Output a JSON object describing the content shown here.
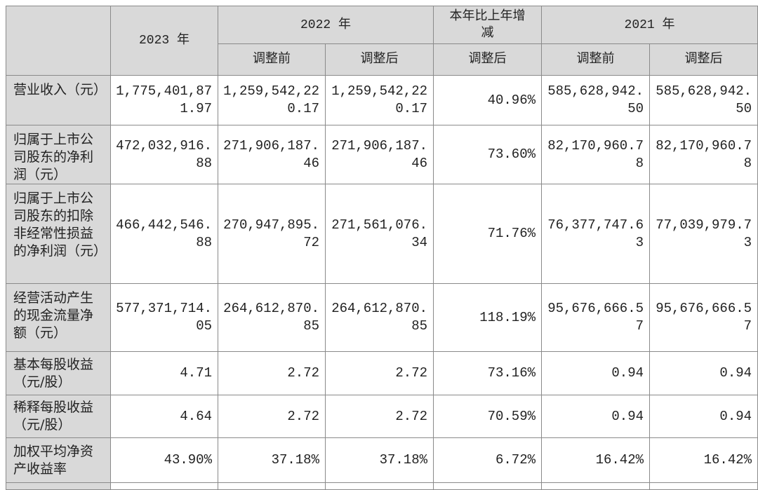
{
  "header": {
    "year_2023": "2023 年",
    "year_2022": "2022 年",
    "change": "本年比上年增减",
    "year_2021": "2021 年",
    "before_adj": "调整前",
    "after_adj": "调整后"
  },
  "rows": [
    {
      "label": "营业收入（元）",
      "v2023": "1,775,401,871.97",
      "v2022_before": "1,259,542,220.17",
      "v2022_after": "1,259,542,220.17",
      "change": "40.96%",
      "v2021_before": "585,628,942.50",
      "v2021_after": "585,628,942.50"
    },
    {
      "label": "归属于上市公司股东的净利润（元）",
      "v2023": "472,032,916.88",
      "v2022_before": "271,906,187.46",
      "v2022_after": "271,906,187.46",
      "change": "73.60%",
      "v2021_before": "82,170,960.78",
      "v2021_after": "82,170,960.78"
    },
    {
      "label": "归属于上市公司股东的扣除非经常性损益的净利润（元）",
      "v2023": "466,442,546.88",
      "v2022_before": "270,947,895.72",
      "v2022_after": "271,561,076.34",
      "change": "71.76%",
      "v2021_before": "76,377,747.63",
      "v2021_after": "77,039,979.73"
    },
    {
      "label": "经营活动产生的现金流量净额（元）",
      "v2023": "577,371,714.05",
      "v2022_before": "264,612,870.85",
      "v2022_after": "264,612,870.85",
      "change": "118.19%",
      "v2021_before": "95,676,666.57",
      "v2021_after": "95,676,666.57"
    },
    {
      "label": "基本每股收益（元/股）",
      "v2023": "4.71",
      "v2022_before": "2.72",
      "v2022_after": "2.72",
      "change": "73.16%",
      "v2021_before": "0.94",
      "v2021_after": "0.94"
    },
    {
      "label": "稀释每股收益（元/股）",
      "v2023": "4.64",
      "v2022_before": "2.72",
      "v2022_after": "2.72",
      "change": "70.59%",
      "v2021_before": "0.94",
      "v2021_after": "0.94"
    },
    {
      "label": "加权平均净资产收益率",
      "v2023": "43.90%",
      "v2022_before": "37.18%",
      "v2022_after": "37.18%",
      "change": "6.72%",
      "v2021_before": "16.42%",
      "v2021_after": "16.42%"
    }
  ]
}
